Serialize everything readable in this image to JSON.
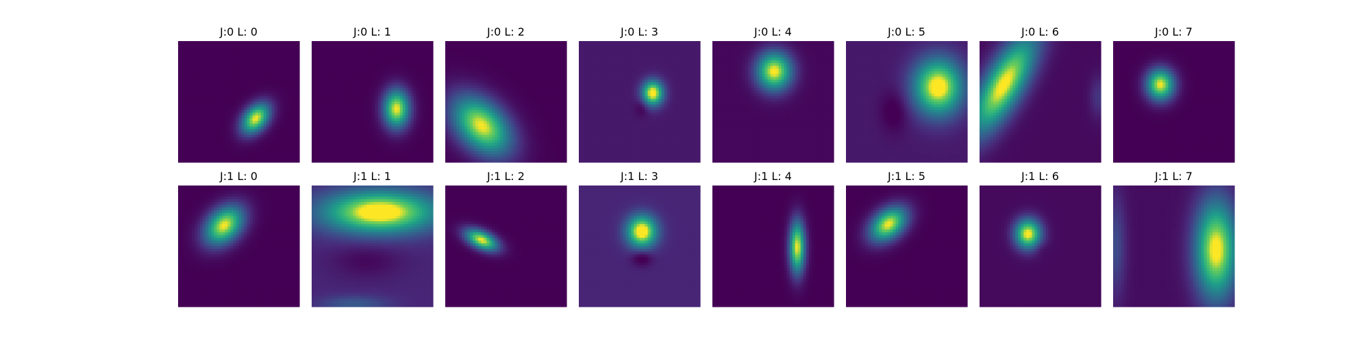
{
  "chart_data": {
    "type": "heatmap",
    "colormap": "viridis",
    "rows": 2,
    "cols": 8,
    "panels": [
      {
        "title": "J:0 L: 0",
        "background": 0.0,
        "blobs": [
          {
            "x": 0.64,
            "y": 0.64,
            "sx": 0.065,
            "sy": 0.1,
            "angle": 40,
            "amp": 1.0
          }
        ]
      },
      {
        "title": "J:0 L: 1",
        "background": 0.0,
        "blobs": [
          {
            "x": 0.7,
            "y": 0.56,
            "sx": 0.075,
            "sy": 0.11,
            "angle": 0,
            "amp": 1.0
          }
        ]
      },
      {
        "title": "J:0 L: 2",
        "background": 0.0,
        "blobs": [
          {
            "x": 0.3,
            "y": 0.7,
            "sx": 0.13,
            "sy": 0.2,
            "angle": -45,
            "amp": 1.0
          }
        ]
      },
      {
        "title": "J:0 L: 3",
        "background": 0.08,
        "blobs": [
          {
            "x": 0.61,
            "y": 0.43,
            "sx": 0.06,
            "sy": 0.07,
            "angle": 0,
            "amp": 1.0
          },
          {
            "x": 0.52,
            "y": 0.55,
            "sx": 0.04,
            "sy": 0.05,
            "angle": 0,
            "amp": -0.1
          }
        ]
      },
      {
        "title": "J:0 L: 4",
        "background": 0.02,
        "blobs": [
          {
            "x": 0.51,
            "y": 0.25,
            "sx": 0.1,
            "sy": 0.11,
            "angle": 0,
            "amp": 1.0
          }
        ]
      },
      {
        "title": "J:0 L: 5",
        "background": 0.08,
        "blobs": [
          {
            "x": 0.76,
            "y": 0.38,
            "sx": 0.14,
            "sy": 0.16,
            "angle": 0,
            "amp": 1.0
          },
          {
            "x": 0.4,
            "y": 0.58,
            "sx": 0.08,
            "sy": 0.12,
            "angle": 0,
            "amp": -0.12
          }
        ]
      },
      {
        "title": "J:0 L: 6",
        "background": 0.03,
        "blobs": [
          {
            "x": 0.2,
            "y": 0.36,
            "sx": 0.11,
            "sy": 0.32,
            "angle": 30,
            "amp": 1.0
          },
          {
            "x": 0.98,
            "y": 0.46,
            "sx": 0.05,
            "sy": 0.12,
            "angle": 0,
            "amp": 0.15
          }
        ]
      },
      {
        "title": "J:0 L: 7",
        "background": 0.0,
        "blobs": [
          {
            "x": 0.39,
            "y": 0.36,
            "sx": 0.08,
            "sy": 0.09,
            "angle": 0,
            "amp": 1.0
          }
        ]
      },
      {
        "title": "J:1 L: 0",
        "background": 0.0,
        "blobs": [
          {
            "x": 0.38,
            "y": 0.33,
            "sx": 0.09,
            "sy": 0.13,
            "angle": 45,
            "amp": 1.0
          }
        ]
      },
      {
        "title": "J:1 L: 1",
        "background": 0.12,
        "blobs": [
          {
            "x": 0.56,
            "y": 0.22,
            "sx": 0.32,
            "sy": 0.12,
            "angle": 0,
            "amp": 1.0
          },
          {
            "x": 0.45,
            "y": 0.62,
            "sx": 0.2,
            "sy": 0.1,
            "angle": 0,
            "amp": -0.1
          },
          {
            "x": 0.35,
            "y": 0.98,
            "sx": 0.2,
            "sy": 0.05,
            "angle": 0,
            "amp": 0.2
          }
        ]
      },
      {
        "title": "J:1 L: 2",
        "background": 0.0,
        "blobs": [
          {
            "x": 0.3,
            "y": 0.45,
            "sx": 0.05,
            "sy": 0.1,
            "angle": -65,
            "amp": 1.0
          }
        ]
      },
      {
        "title": "J:1 L: 3",
        "background": 0.12,
        "blobs": [
          {
            "x": 0.52,
            "y": 0.38,
            "sx": 0.085,
            "sy": 0.09,
            "angle": 0,
            "amp": 1.0
          },
          {
            "x": 0.52,
            "y": 0.6,
            "sx": 0.06,
            "sy": 0.045,
            "angle": 0,
            "amp": -0.18
          }
        ]
      },
      {
        "title": "J:1 L: 4",
        "background": 0.0,
        "blobs": [
          {
            "x": 0.7,
            "y": 0.51,
            "sx": 0.045,
            "sy": 0.15,
            "angle": 0,
            "amp": 1.0
          }
        ]
      },
      {
        "title": "J:1 L: 5",
        "background": 0.0,
        "blobs": [
          {
            "x": 0.35,
            "y": 0.32,
            "sx": 0.08,
            "sy": 0.12,
            "angle": 50,
            "amp": 1.0
          }
        ]
      },
      {
        "title": "J:1 L: 6",
        "background": 0.03,
        "blobs": [
          {
            "x": 0.4,
            "y": 0.4,
            "sx": 0.075,
            "sy": 0.085,
            "angle": 0,
            "amp": 1.0
          },
          {
            "x": 0.5,
            "y": 0.52,
            "sx": 0.04,
            "sy": 0.04,
            "angle": 0,
            "amp": -0.05
          }
        ]
      },
      {
        "title": "J:1 L: 7",
        "background": 0.04,
        "blobs": [
          {
            "x": 0.85,
            "y": 0.53,
            "sx": 0.12,
            "sy": 0.28,
            "angle": 0,
            "amp": 1.0
          },
          {
            "x": 0.02,
            "y": 0.5,
            "sx": 0.06,
            "sy": 0.3,
            "angle": 0,
            "amp": 0.22
          }
        ]
      }
    ]
  }
}
